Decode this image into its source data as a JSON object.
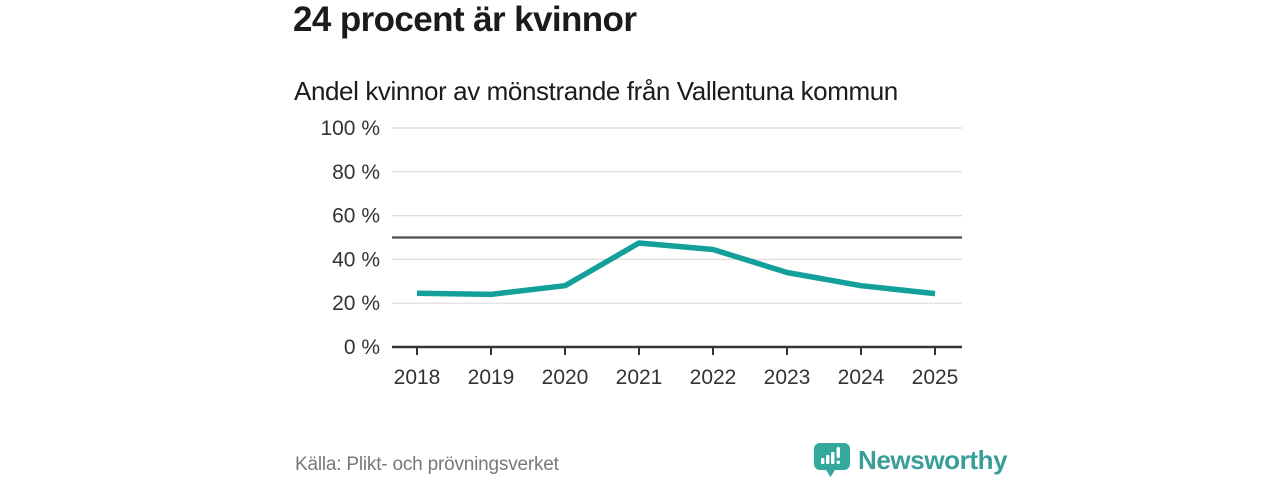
{
  "header": {
    "title": "24 procent är kvinnor",
    "subtitle": "Andel kvinnor av mönstrande från Vallentuna kommun"
  },
  "footer": {
    "source": "Källa: Plikt- och prövningsverket",
    "brand": {
      "name": "Newsworthy",
      "icon": "bar-chart-speech-bubble-icon",
      "icon_color": "#35a89e",
      "text_color": "#3a9e98"
    }
  },
  "chart_data": {
    "type": "line",
    "title": "24 procent är kvinnor",
    "subtitle": "Andel kvinnor av mönstrande från Vallentuna kommun",
    "x": [
      "2018",
      "2019",
      "2020",
      "2021",
      "2022",
      "2023",
      "2024",
      "2025"
    ],
    "series": [
      {
        "name": "Andel kvinnor",
        "color": "#14a09a",
        "values": [
          24.5,
          24,
          28,
          47.5,
          44.5,
          34,
          28,
          24.4
        ]
      }
    ],
    "ylim": [
      0,
      100
    ],
    "yticks": [
      0,
      20,
      40,
      60,
      80,
      100
    ],
    "ytick_suffix": " %",
    "reference_line": 50,
    "grid": true,
    "legend": "none",
    "colors": {
      "gridline": "#dcdcdc",
      "reference_line": "#4d4d4d",
      "axis": "#333333",
      "tick_label": "#333333"
    }
  }
}
